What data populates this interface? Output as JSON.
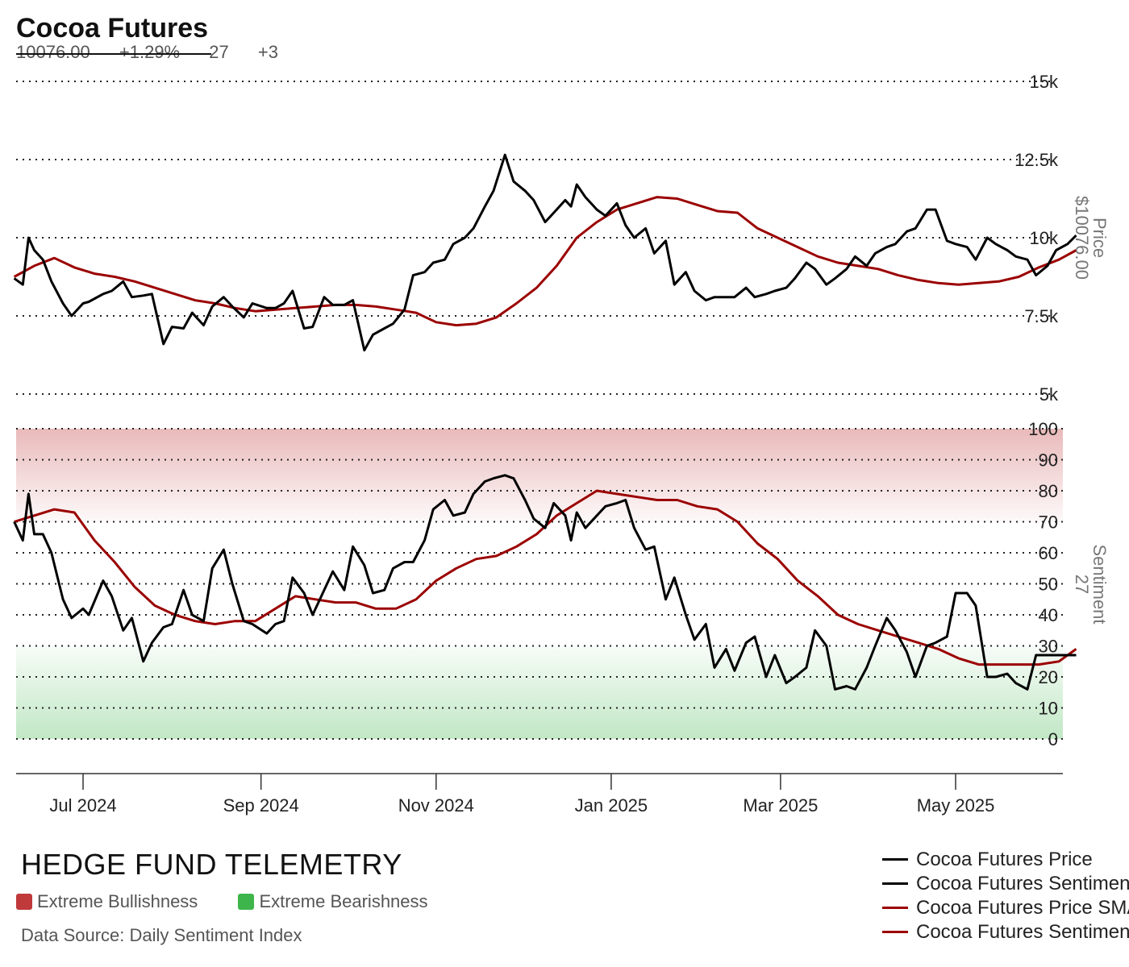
{
  "header": {
    "title": "Cocoa Futures",
    "price": "10076.00",
    "price_change": "+1.29%",
    "sentiment": "27",
    "sentiment_change": "+3"
  },
  "footer": {
    "brand": "HEDGE FUND TELEMETRY",
    "bullish_label": "Extreme Bullishness",
    "bearish_label": "Extreme Bearishness",
    "source": "Data Source: Daily Sentiment Index",
    "bullish_color": "#c0393b",
    "bearish_color": "#3db54a"
  },
  "legend": [
    {
      "label": "Cocoa Futures Price",
      "color": "#000000"
    },
    {
      "label": "Cocoa Futures Sentiment",
      "color": "#000000"
    },
    {
      "label": "Cocoa Futures Price SMA",
      "color": "#9b0000"
    },
    {
      "label": "Cocoa Futures Sentiment SMA",
      "color": "#9b0000"
    }
  ],
  "chart_data": [
    {
      "type": "line",
      "title": "Cocoa Futures",
      "ylabel": "Price",
      "ylabel_value": "$10076.00",
      "ylim": [
        5000,
        15000
      ],
      "yticks": [
        "5k",
        "7.5k",
        "10k",
        "12.5k",
        "15k"
      ],
      "ytick_values": [
        5000,
        7500,
        10000,
        12500,
        15000
      ],
      "grid": true,
      "x_tick_labels": [
        "Jul 2024",
        "Sep 2024",
        "Nov 2024",
        "Jan 2025",
        "Mar 2025",
        "May 2025"
      ],
      "series": [
        {
          "name": "Cocoa Futures Price",
          "color": "#000000",
          "x": [
            "2024-06-07",
            "2024-06-10",
            "2024-06-12",
            "2024-06-14",
            "2024-06-17",
            "2024-06-20",
            "2024-06-24",
            "2024-06-27",
            "2024-07-01",
            "2024-07-03",
            "2024-07-08",
            "2024-07-11",
            "2024-07-15",
            "2024-07-18",
            "2024-07-22",
            "2024-07-25",
            "2024-07-29",
            "2024-08-01",
            "2024-08-05",
            "2024-08-08",
            "2024-08-12",
            "2024-08-15",
            "2024-08-19",
            "2024-08-22",
            "2024-08-26",
            "2024-08-29",
            "2024-09-03",
            "2024-09-06",
            "2024-09-09",
            "2024-09-12",
            "2024-09-16",
            "2024-09-19",
            "2024-09-23",
            "2024-09-26",
            "2024-09-30",
            "2024-10-03",
            "2024-10-07",
            "2024-10-10",
            "2024-10-14",
            "2024-10-17",
            "2024-10-21",
            "2024-10-24",
            "2024-10-28",
            "2024-10-31",
            "2024-11-04",
            "2024-11-07",
            "2024-11-11",
            "2024-11-14",
            "2024-11-18",
            "2024-11-21",
            "2024-11-25",
            "2024-11-28",
            "2024-12-02",
            "2024-12-05",
            "2024-12-09",
            "2024-12-12",
            "2024-12-16",
            "2024-12-18",
            "2024-12-20",
            "2024-12-23",
            "2024-12-27",
            "2024-12-30",
            "2025-01-03",
            "2025-01-06",
            "2025-01-09",
            "2025-01-13",
            "2025-01-16",
            "2025-01-20",
            "2025-01-23",
            "2025-01-27",
            "2025-01-30",
            "2025-02-03",
            "2025-02-06",
            "2025-02-10",
            "2025-02-13",
            "2025-02-17",
            "2025-02-20",
            "2025-02-24",
            "2025-02-27",
            "2025-03-03",
            "2025-03-06",
            "2025-03-10",
            "2025-03-13",
            "2025-03-17",
            "2025-03-20",
            "2025-03-24",
            "2025-03-27",
            "2025-03-31",
            "2025-04-03",
            "2025-04-07",
            "2025-04-10",
            "2025-04-14",
            "2025-04-17",
            "2025-04-21",
            "2025-04-24",
            "2025-04-28",
            "2025-05-01",
            "2025-05-05",
            "2025-05-08",
            "2025-05-12",
            "2025-05-15",
            "2025-05-19",
            "2025-05-22",
            "2025-05-26",
            "2025-05-29",
            "2025-06-02",
            "2025-06-05",
            "2025-06-09",
            "2025-06-12"
          ],
          "values": [
            8700,
            8500,
            10000,
            9600,
            9300,
            8600,
            7900,
            7500,
            7900,
            7950,
            8200,
            8300,
            8600,
            8100,
            8150,
            8200,
            6600,
            7150,
            7100,
            7600,
            7200,
            7800,
            8100,
            7800,
            7450,
            7900,
            7750,
            7750,
            7900,
            8300,
            7100,
            7150,
            8100,
            7850,
            7850,
            8000,
            6400,
            6900,
            7100,
            7250,
            7700,
            8800,
            8900,
            9200,
            9300,
            9800,
            10000,
            10300,
            11000,
            11500,
            12650,
            11800,
            11500,
            11200,
            10500,
            10800,
            11200,
            11000,
            11700,
            11300,
            10900,
            10700,
            11100,
            10400,
            10000,
            10300,
            9500,
            9900,
            8500,
            8900,
            8300,
            8000,
            8100,
            8100,
            8100,
            8400,
            8100,
            8200,
            8300,
            8400,
            8700,
            9200,
            9000,
            8500,
            8700,
            9000,
            9400,
            9100,
            9500,
            9700,
            9800,
            10200,
            10300,
            10900,
            10900,
            9900,
            9800,
            9700,
            9300,
            10000,
            9800,
            9600,
            9400,
            9300,
            8800,
            9100,
            9600,
            9800,
            10076
          ]
        },
        {
          "name": "Cocoa Futures Price SMA",
          "color": "#9b0000",
          "x": [
            "2024-06-07",
            "2024-06-14",
            "2024-06-21",
            "2024-06-28",
            "2024-07-05",
            "2024-07-12",
            "2024-07-19",
            "2024-07-26",
            "2024-08-02",
            "2024-08-09",
            "2024-08-16",
            "2024-08-23",
            "2024-08-30",
            "2024-09-06",
            "2024-09-13",
            "2024-09-20",
            "2024-09-27",
            "2024-10-04",
            "2024-10-11",
            "2024-10-18",
            "2024-10-25",
            "2024-11-01",
            "2024-11-08",
            "2024-11-15",
            "2024-11-22",
            "2024-11-29",
            "2024-12-06",
            "2024-12-13",
            "2024-12-20",
            "2024-12-27",
            "2025-01-03",
            "2025-01-10",
            "2025-01-17",
            "2025-01-24",
            "2025-01-31",
            "2025-02-07",
            "2025-02-14",
            "2025-02-21",
            "2025-02-28",
            "2025-03-07",
            "2025-03-14",
            "2025-03-21",
            "2025-03-28",
            "2025-04-04",
            "2025-04-11",
            "2025-04-18",
            "2025-04-25",
            "2025-05-02",
            "2025-05-09",
            "2025-05-16",
            "2025-05-23",
            "2025-05-30",
            "2025-06-06",
            "2025-06-12"
          ],
          "values": [
            8750,
            9100,
            9350,
            9050,
            8850,
            8750,
            8600,
            8400,
            8200,
            8000,
            7900,
            7750,
            7650,
            7700,
            7750,
            7800,
            7850,
            7850,
            7800,
            7700,
            7600,
            7300,
            7200,
            7250,
            7450,
            7900,
            8400,
            9100,
            10000,
            10500,
            10900,
            11100,
            11300,
            11250,
            11050,
            10850,
            10800,
            10300,
            10000,
            9700,
            9400,
            9200,
            9100,
            9000,
            8800,
            8650,
            8550,
            8500,
            8550,
            8600,
            8750,
            9050,
            9300,
            9600
          ]
        }
      ]
    },
    {
      "type": "line",
      "ylabel": "Sentiment",
      "ylabel_value": "27",
      "ylim": [
        0,
        100
      ],
      "yticks": [
        "0",
        "10",
        "20",
        "30",
        "40",
        "50",
        "60",
        "70",
        "80",
        "90",
        "100"
      ],
      "ytick_values": [
        0,
        10,
        20,
        30,
        40,
        50,
        60,
        70,
        80,
        90,
        100
      ],
      "grid": true,
      "bands": [
        {
          "label": "Extreme Bullishness",
          "from": 70,
          "to": 100,
          "color": "#c0393b"
        },
        {
          "label": "Extreme Bearishness",
          "from": 0,
          "to": 30,
          "color": "#3db54a"
        }
      ],
      "x_tick_labels": [
        "Jul 2024",
        "Sep 2024",
        "Nov 2024",
        "Jan 2025",
        "Mar 2025",
        "May 2025"
      ],
      "series": [
        {
          "name": "Cocoa Futures Sentiment",
          "color": "#000000",
          "x": [
            "2024-06-07",
            "2024-06-10",
            "2024-06-12",
            "2024-06-14",
            "2024-06-17",
            "2024-06-20",
            "2024-06-24",
            "2024-06-27",
            "2024-07-01",
            "2024-07-03",
            "2024-07-08",
            "2024-07-11",
            "2024-07-15",
            "2024-07-18",
            "2024-07-22",
            "2024-07-25",
            "2024-07-29",
            "2024-08-01",
            "2024-08-05",
            "2024-08-08",
            "2024-08-12",
            "2024-08-15",
            "2024-08-19",
            "2024-08-22",
            "2024-08-26",
            "2024-08-29",
            "2024-09-03",
            "2024-09-06",
            "2024-09-09",
            "2024-09-12",
            "2024-09-16",
            "2024-09-19",
            "2024-09-23",
            "2024-09-26",
            "2024-09-30",
            "2024-10-03",
            "2024-10-07",
            "2024-10-10",
            "2024-10-14",
            "2024-10-17",
            "2024-10-21",
            "2024-10-24",
            "2024-10-28",
            "2024-10-31",
            "2024-11-04",
            "2024-11-07",
            "2024-11-11",
            "2024-11-14",
            "2024-11-18",
            "2024-11-21",
            "2024-11-25",
            "2024-11-28",
            "2024-12-02",
            "2024-12-05",
            "2024-12-09",
            "2024-12-12",
            "2024-12-16",
            "2024-12-18",
            "2024-12-20",
            "2024-12-23",
            "2024-12-27",
            "2024-12-30",
            "2025-01-03",
            "2025-01-06",
            "2025-01-09",
            "2025-01-13",
            "2025-01-16",
            "2025-01-20",
            "2025-01-23",
            "2025-01-27",
            "2025-01-30",
            "2025-02-03",
            "2025-02-06",
            "2025-02-10",
            "2025-02-13",
            "2025-02-17",
            "2025-02-20",
            "2025-02-24",
            "2025-02-27",
            "2025-03-03",
            "2025-03-06",
            "2025-03-10",
            "2025-03-13",
            "2025-03-17",
            "2025-03-20",
            "2025-03-24",
            "2025-03-27",
            "2025-03-31",
            "2025-04-03",
            "2025-04-07",
            "2025-04-10",
            "2025-04-14",
            "2025-04-17",
            "2025-04-21",
            "2025-04-24",
            "2025-04-28",
            "2025-05-01",
            "2025-05-05",
            "2025-05-08",
            "2025-05-12",
            "2025-05-15",
            "2025-05-19",
            "2025-05-22",
            "2025-05-26",
            "2025-05-29",
            "2025-06-02",
            "2025-06-05",
            "2025-06-09",
            "2025-06-12"
          ],
          "values": [
            70,
            64,
            79,
            66,
            66,
            60,
            45,
            39,
            42,
            40,
            51,
            46,
            35,
            39,
            25,
            31,
            36,
            37,
            48,
            40,
            38,
            55,
            61,
            50,
            38,
            37,
            34,
            37,
            38,
            52,
            47,
            40,
            48,
            54,
            48,
            62,
            56,
            47,
            48,
            55,
            57,
            57,
            64,
            74,
            77,
            72,
            73,
            79,
            83,
            84,
            85,
            84,
            77,
            71,
            68,
            76,
            72,
            64,
            73,
            68,
            72,
            75,
            76,
            77,
            68,
            61,
            62,
            45,
            52,
            40,
            32,
            37,
            23,
            29,
            22,
            31,
            33,
            20,
            27,
            18,
            20,
            23,
            35,
            30,
            16,
            17,
            16,
            23,
            30,
            39,
            35,
            28,
            20,
            30,
            31,
            33,
            47,
            47,
            43,
            20,
            20,
            21,
            18,
            16,
            27,
            27,
            27,
            27,
            27
          ],
          "_note_removed": true
        },
        {
          "name": "Cocoa Futures Sentiment SMA",
          "color": "#9b0000",
          "x": [
            "2024-06-07",
            "2024-06-14",
            "2024-06-21",
            "2024-06-28",
            "2024-07-05",
            "2024-07-12",
            "2024-07-19",
            "2024-07-26",
            "2024-08-02",
            "2024-08-09",
            "2024-08-16",
            "2024-08-23",
            "2024-08-30",
            "2024-09-06",
            "2024-09-13",
            "2024-09-20",
            "2024-09-27",
            "2024-10-04",
            "2024-10-11",
            "2024-10-18",
            "2024-10-25",
            "2024-11-01",
            "2024-11-08",
            "2024-11-15",
            "2024-11-22",
            "2024-11-29",
            "2024-12-06",
            "2024-12-13",
            "2024-12-20",
            "2024-12-27",
            "2025-01-03",
            "2025-01-10",
            "2025-01-17",
            "2025-01-24",
            "2025-01-31",
            "2025-02-07",
            "2025-02-14",
            "2025-02-21",
            "2025-02-28",
            "2025-03-07",
            "2025-03-14",
            "2025-03-21",
            "2025-03-28",
            "2025-04-04",
            "2025-04-11",
            "2025-04-18",
            "2025-04-25",
            "2025-05-02",
            "2025-05-09",
            "2025-05-16",
            "2025-05-23",
            "2025-05-30",
            "2025-06-06",
            "2025-06-12"
          ],
          "values": [
            70,
            72,
            74,
            73,
            64,
            57,
            49,
            43,
            40,
            38,
            37,
            38,
            38,
            42,
            46,
            45,
            44,
            44,
            42,
            42,
            45,
            51,
            55,
            58,
            59,
            62,
            66,
            72,
            76,
            80,
            79,
            78,
            77,
            77,
            75,
            74,
            70,
            63,
            58,
            51,
            46,
            40,
            37,
            35,
            33,
            31,
            29,
            26,
            24,
            24,
            24,
            24,
            25,
            29
          ]
        }
      ]
    }
  ]
}
